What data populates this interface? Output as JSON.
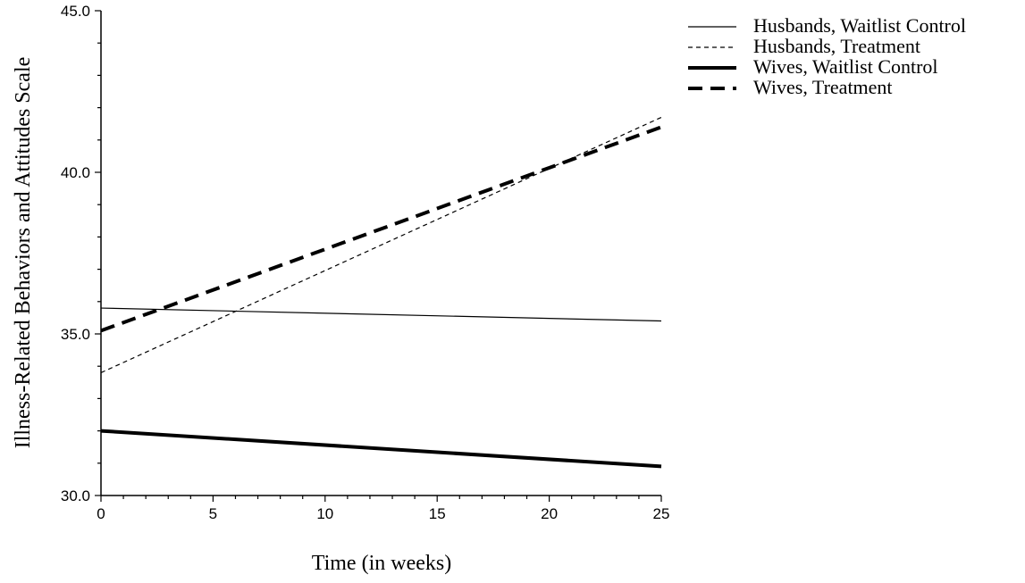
{
  "chart_data": {
    "type": "line",
    "title": "",
    "xlabel": "Time (in weeks)",
    "ylabel": "Illness-Related Behaviors and Attitudes Scale",
    "xlim": [
      0,
      25
    ],
    "ylim": [
      30.0,
      45.0
    ],
    "x_ticks": [
      "0",
      "5",
      "10",
      "15",
      "20",
      "25"
    ],
    "y_ticks": [
      "30.0",
      "35.0",
      "40.0",
      "45.0"
    ],
    "grid": false,
    "legend_position": "top-right",
    "series": [
      {
        "name": "Husbands, Waitlist Control",
        "style": "thin-solid",
        "color": "#000000",
        "x": [
          0,
          25
        ],
        "y": [
          35.8,
          35.4
        ]
      },
      {
        "name": "Husbands, Treatment",
        "style": "thin-dashed",
        "color": "#000000",
        "x": [
          0,
          25
        ],
        "y": [
          33.8,
          41.7
        ]
      },
      {
        "name": "Wives, Waitlist Control",
        "style": "thick-solid",
        "color": "#000000",
        "x": [
          0,
          25
        ],
        "y": [
          32.0,
          30.9
        ]
      },
      {
        "name": "Wives, Treatment",
        "style": "thick-dashed",
        "color": "#000000",
        "x": [
          0,
          25
        ],
        "y": [
          35.1,
          41.4
        ]
      }
    ]
  }
}
